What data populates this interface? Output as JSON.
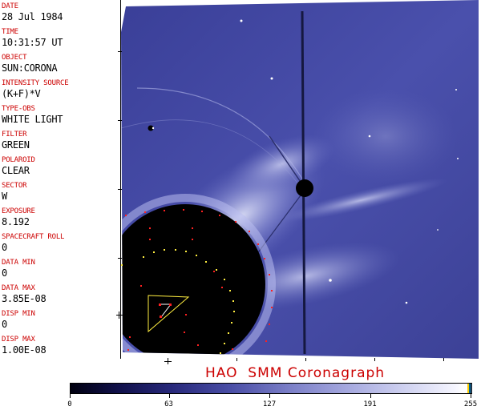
{
  "metadata": {
    "fields": [
      {
        "label": "DATE",
        "value": "28 Jul 1984"
      },
      {
        "label": "TIME",
        "value": "10:31:57 UT"
      },
      {
        "label": "OBJECT",
        "value": "SUN:CORONA"
      },
      {
        "label": "INTENSITY SOURCE",
        "value": "(K+F)*V"
      },
      {
        "label": "TYPE-OBS",
        "value": "WHITE LIGHT"
      },
      {
        "label": "FILTER",
        "value": "GREEN"
      },
      {
        "label": "POLAROID",
        "value": "CLEAR"
      },
      {
        "label": "SECTOR",
        "value": "W"
      },
      {
        "label": "EXPOSURE",
        "value": "8.192"
      },
      {
        "label": "SPACECRAFT ROLL",
        "value": "0"
      },
      {
        "label": "DATA MIN",
        "value": "0"
      },
      {
        "label": "DATA MAX",
        "value": "3.85E-08"
      },
      {
        "label": "DISP MIN",
        "value": "0"
      },
      {
        "label": "DISP MAX",
        "value": "1.00E-08"
      }
    ]
  },
  "title": "HAO  SMM Coronagraph",
  "colorbar": {
    "labels": [
      "0",
      "63",
      "127",
      "191",
      "255"
    ],
    "values": [
      0,
      63,
      127,
      191,
      255
    ],
    "range": [
      0,
      255
    ]
  },
  "colors": {
    "label_red": "#cc0000",
    "corona_blue": "#4a4fa8",
    "occulter": "#000000",
    "grid_red": "#ff2020",
    "grid_yellow": "#ffee40"
  }
}
